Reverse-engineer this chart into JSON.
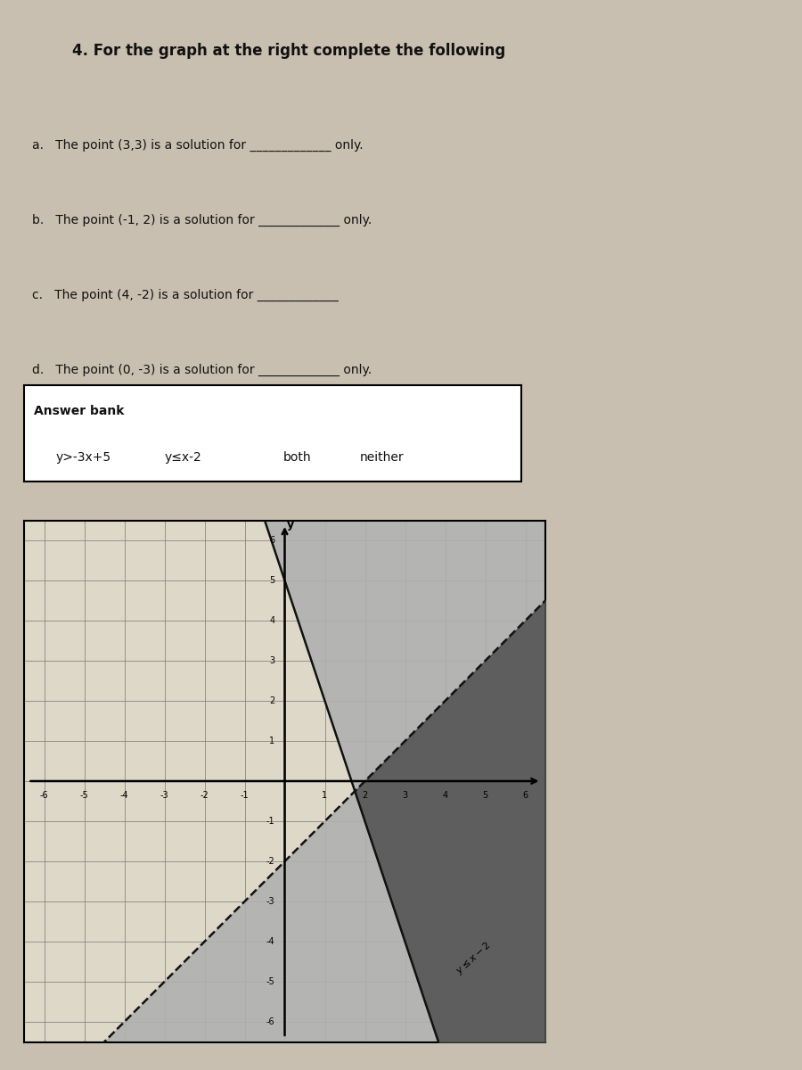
{
  "title": "4. For the graph at the right complete the following",
  "questions": [
    "a.   The point (3,3) is a solution for _____________ only.",
    "b.   The point (-1, 2) is a solution for _____________ only.",
    "c.   The point (4, -2) is a solution for _____________",
    "d.   The point (0, -3) is a solution for _____________ only."
  ],
  "answer_bank_label": "Answer bank",
  "answer_bank_items": [
    "y>-3x+5",
    "y≤x-2",
    "both",
    "neither"
  ],
  "xmin": -6,
  "xmax": 6,
  "ymin": -6,
  "ymax": 6,
  "line1_slope": -3,
  "line1_intercept": 5,
  "line1_dashed": true,
  "line2_slope": 1,
  "line2_intercept": -2,
  "line2_dashed": false,
  "shade_light": "#b0b0b0",
  "shade_dark": "#505050",
  "line_color": "#111111",
  "grid_color": "#777777",
  "paper_color": "#e8e0d0",
  "graph_bg": "#ddd8c8",
  "text_color": "#111111",
  "font_size_title": 12,
  "font_size_questions": 10,
  "font_size_answer_bank": 10,
  "font_size_tick": 7,
  "graph_label_line2": "y≤x-2"
}
